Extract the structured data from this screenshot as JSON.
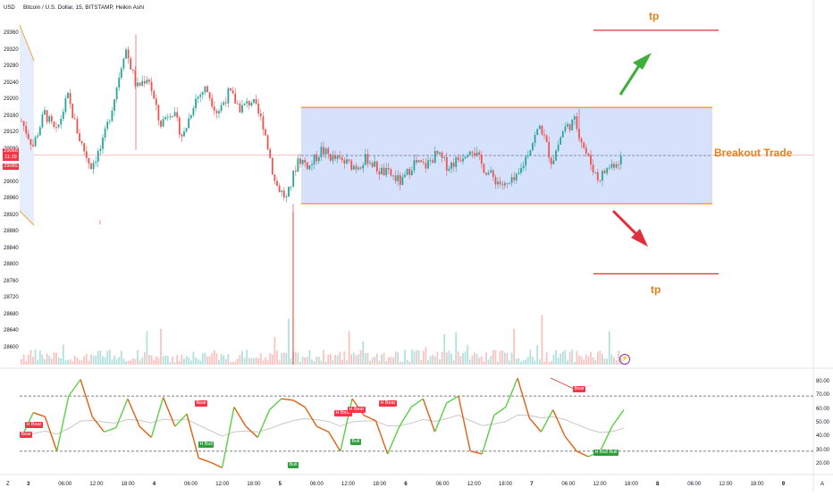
{
  "header": {
    "currency": "USD",
    "title": "Bitcoin / U.S. Dollar, 15, BITSTAMP, Heikin Ashi"
  },
  "price_axis": {
    "ticks": [
      29360,
      29280,
      29200,
      29120,
      29040,
      28960,
      28880,
      28800,
      28720,
      28640,
      28600
    ],
    "ticks_top": [
      29360,
      29320,
      29280,
      29240,
      29200,
      29160,
      29120,
      29080,
      29000,
      28960,
      28920,
      28880,
      28840,
      28800,
      28760,
      28720,
      28680,
      28640,
      28600
    ],
    "badges": [
      {
        "text": "29068",
        "sub": "11:29",
        "color": "#f23645"
      },
      {
        "text": "29085",
        "color": "#f23645"
      }
    ]
  },
  "osc_axis": {
    "ticks": [
      "80.00",
      "70.00",
      "60.00",
      "50.00",
      "40.00",
      "30.00",
      "20.00"
    ]
  },
  "time_axis": {
    "labels": [
      "3",
      "06:00",
      "12:00",
      "18:00",
      "4",
      "06:00",
      "12:00",
      "18:00",
      "5",
      "06:00",
      "12:00",
      "18:00",
      "6",
      "06:00",
      "12:00",
      "18:00",
      "7",
      "06:00",
      "12:00",
      "18:00",
      "8",
      "06:00",
      "12:00",
      "18:00",
      "9"
    ],
    "corner_left": "Z",
    "corner_right": "A"
  },
  "annotations": {
    "tp_top": "tp",
    "tp_bottom": "tp",
    "breakout": "Breakout Trade"
  },
  "divergence_tags": {
    "bear": "Bear",
    "h_bear": "H Bear",
    "bull": "Bull",
    "h_bull": "H Bull"
  },
  "colors": {
    "up": "#26a69a",
    "down": "#ef5350",
    "range_fill": "#cfdcfb",
    "range_border": "#f0a23a",
    "tp_line": "#e03030",
    "arrow_up": "#3fae3a",
    "arrow_down": "#e0303f",
    "annotation_text": "#e8801a"
  },
  "chart_data": {
    "type": "candlestick",
    "style": "Heikin Ashi",
    "symbol": "Bitcoin / U.S. Dollar",
    "interval": "15",
    "exchange": "BITSTAMP",
    "y_range": [
      28560,
      29400
    ],
    "last_price": 29068,
    "range_box": {
      "top": 29183,
      "bottom": 28950
    },
    "take_profit_levels": [
      29370,
      28780
    ],
    "price_path": [
      [
        0,
        29150
      ],
      [
        1,
        29090
      ],
      [
        2,
        29170
      ],
      [
        3,
        29120
      ],
      [
        4,
        29210
      ],
      [
        5,
        29110
      ],
      [
        6,
        29040
      ],
      [
        7,
        29090
      ],
      [
        8,
        29200
      ],
      [
        9,
        29330
      ],
      [
        10,
        29230
      ],
      [
        11,
        29260
      ],
      [
        12,
        29140
      ],
      [
        13,
        29180
      ],
      [
        14,
        29110
      ],
      [
        15,
        29200
      ],
      [
        16,
        29230
      ],
      [
        17,
        29170
      ],
      [
        18,
        29220
      ],
      [
        19,
        29180
      ],
      [
        20,
        29200
      ],
      [
        21,
        29140
      ],
      [
        22,
        29000
      ],
      [
        23,
        28960
      ],
      [
        24,
        29060
      ],
      [
        25,
        29040
      ],
      [
        26,
        29080
      ],
      [
        27,
        29060
      ],
      [
        28,
        29050
      ],
      [
        29,
        29040
      ],
      [
        30,
        29060
      ],
      [
        31,
        29030
      ],
      [
        32,
        29020
      ],
      [
        33,
        29000
      ],
      [
        34,
        29050
      ],
      [
        35,
        29040
      ],
      [
        36,
        29070
      ],
      [
        37,
        29040
      ],
      [
        38,
        29060
      ],
      [
        39,
        29090
      ],
      [
        40,
        29040
      ],
      [
        41,
        29010
      ],
      [
        42,
        28990
      ],
      [
        43,
        29010
      ],
      [
        44,
        29080
      ],
      [
        45,
        29140
      ],
      [
        46,
        29050
      ],
      [
        47,
        29130
      ],
      [
        48,
        29150
      ],
      [
        49,
        29070
      ],
      [
        50,
        29010
      ],
      [
        51,
        29040
      ],
      [
        52,
        29060
      ]
    ],
    "oscillator": {
      "y_range": [
        15,
        85
      ],
      "overbought": 70,
      "oversold": 30,
      "values": [
        40,
        58,
        55,
        30,
        70,
        82,
        55,
        44,
        47,
        68,
        48,
        40,
        69,
        48,
        57,
        25,
        22,
        18,
        62,
        48,
        40,
        60,
        68,
        67,
        62,
        48,
        44,
        30,
        68,
        56,
        52,
        28,
        48,
        62,
        68,
        44,
        65,
        70,
        30,
        28,
        56,
        62,
        83,
        54,
        44,
        60,
        41,
        30,
        26,
        30,
        48,
        60
      ]
    }
  }
}
